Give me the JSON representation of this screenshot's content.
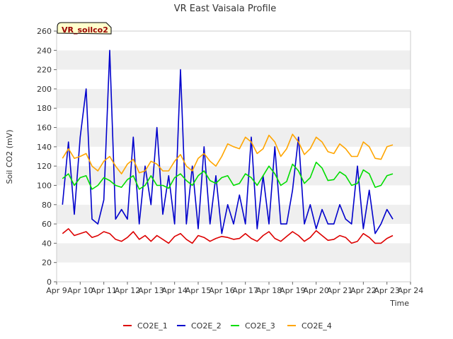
{
  "chart_data": {
    "type": "line",
    "title": "VR East Vaisala Profile",
    "site_label": "VR_soilco2",
    "xlabel": "Time",
    "ylabel": "Soil CO2 (mV)",
    "ylim": [
      0,
      260
    ],
    "yticks": [
      0,
      20,
      40,
      60,
      80,
      100,
      120,
      140,
      160,
      180,
      200,
      220,
      240,
      260
    ],
    "xlim": [
      "Apr 9",
      "Apr 24"
    ],
    "xticks": [
      "Apr 9",
      "Apr 10",
      "Apr 11",
      "Apr 12",
      "Apr 13",
      "Apr 14",
      "Apr 15",
      "Apr 16",
      "Apr 17",
      "Apr 18",
      "Apr 19",
      "Apr 20",
      "Apr 21",
      "Apr 22",
      "Apr 23",
      "Apr 24"
    ],
    "grid": "horizontal alternating bands",
    "legend_position": "bottom",
    "x": [
      9.25,
      9.5,
      9.75,
      10.0,
      10.25,
      10.5,
      10.75,
      11.0,
      11.25,
      11.5,
      11.75,
      12.0,
      12.25,
      12.5,
      12.75,
      13.0,
      13.25,
      13.5,
      13.75,
      14.0,
      14.25,
      14.5,
      14.75,
      15.0,
      15.25,
      15.5,
      15.75,
      16.0,
      16.25,
      16.5,
      16.75,
      17.0,
      17.25,
      17.5,
      17.75,
      18.0,
      18.25,
      18.5,
      18.75,
      19.0,
      19.25,
      19.5,
      19.75,
      20.0,
      20.25,
      20.5,
      20.75,
      21.0,
      21.25,
      21.5,
      21.75,
      22.0,
      22.25,
      22.5,
      22.75,
      23.0,
      23.25
    ],
    "series": [
      {
        "name": "CO2E_1",
        "color": "#dd0000",
        "values": [
          50,
          55,
          48,
          50,
          52,
          46,
          48,
          52,
          50,
          44,
          42,
          46,
          52,
          44,
          48,
          42,
          48,
          44,
          40,
          47,
          50,
          44,
          40,
          48,
          46,
          42,
          45,
          47,
          46,
          44,
          45,
          50,
          45,
          42,
          48,
          52,
          45,
          42,
          47,
          52,
          48,
          42,
          46,
          53,
          48,
          43,
          44,
          48,
          46,
          40,
          42,
          50,
          46,
          40,
          40,
          45,
          48
        ]
      },
      {
        "name": "CO2E_2",
        "color": "#0000cc",
        "values": [
          80,
          145,
          70,
          150,
          200,
          65,
          60,
          85,
          240,
          65,
          75,
          65,
          150,
          60,
          120,
          80,
          160,
          70,
          110,
          60,
          220,
          60,
          120,
          55,
          140,
          60,
          110,
          50,
          80,
          60,
          90,
          60,
          150,
          55,
          110,
          60,
          140,
          60,
          60,
          95,
          150,
          60,
          80,
          55,
          75,
          60,
          60,
          80,
          65,
          60,
          120,
          55,
          95,
          50,
          60,
          75,
          65
        ]
      },
      {
        "name": "CO2E_3",
        "color": "#00dd00",
        "values": [
          107,
          112,
          100,
          108,
          110,
          96,
          100,
          108,
          105,
          100,
          98,
          106,
          110,
          96,
          100,
          110,
          100,
          100,
          97,
          108,
          112,
          105,
          100,
          110,
          115,
          105,
          102,
          108,
          110,
          100,
          102,
          112,
          108,
          100,
          110,
          120,
          112,
          100,
          104,
          122,
          115,
          102,
          108,
          124,
          118,
          105,
          106,
          114,
          110,
          100,
          102,
          116,
          112,
          98,
          100,
          110,
          112
        ]
      },
      {
        "name": "CO2E_4",
        "color": "#ffa500",
        "values": [
          128,
          138,
          128,
          130,
          133,
          120,
          115,
          125,
          130,
          120,
          112,
          122,
          127,
          113,
          115,
          125,
          122,
          115,
          115,
          125,
          132,
          120,
          115,
          128,
          133,
          125,
          120,
          130,
          143,
          140,
          138,
          150,
          145,
          133,
          138,
          152,
          145,
          130,
          138,
          153,
          145,
          132,
          138,
          150,
          145,
          135,
          133,
          143,
          138,
          130,
          130,
          145,
          140,
          128,
          127,
          140,
          142
        ]
      }
    ]
  }
}
